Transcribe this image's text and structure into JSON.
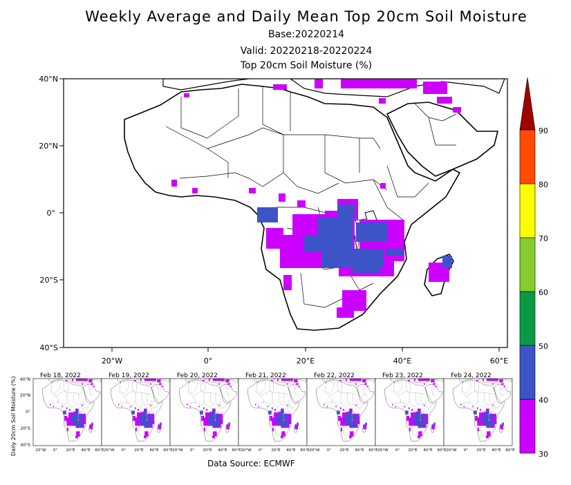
{
  "header": {
    "title": "Weekly Average and Daily Mean Top 20cm Soil Moisture",
    "base": "Base:20220214",
    "valid": "Valid: 20220218-20220224",
    "units": "Top 20cm Soil Moisture (%)"
  },
  "main_map": {
    "lat_labels": [
      "40°N",
      "20°N",
      "0°",
      "20°S",
      "40°S"
    ],
    "lon_labels": [
      "20°W",
      "0°",
      "20°E",
      "40°E",
      "60°E"
    ]
  },
  "colorbar": {
    "levels": [
      "30",
      "40",
      "50",
      "60",
      "70",
      "80",
      "90"
    ],
    "colors": [
      "#cc00ff",
      "#3c54c8",
      "#0a9a46",
      "#86cc2c",
      "#ffff00",
      "#ff4c00",
      "#a00000"
    ]
  },
  "daily": {
    "ylabel": "Daily 20cm Soil Moisture (%)",
    "panels": [
      "Feb 18, 2022",
      "Feb 19, 2022",
      "Feb 20, 2022",
      "Feb 21, 2022",
      "Feb 22, 2022",
      "Feb 23, 2022",
      "Feb 24, 2022"
    ],
    "small_lat_labels": [
      "40°N",
      "20°N",
      "0°",
      "20°S",
      "40°S"
    ],
    "small_lon_labels": [
      "20°W",
      "0°",
      "20°E",
      "40°E",
      "60°E"
    ]
  },
  "footer": {
    "source": "Data Source: ECMWF"
  }
}
